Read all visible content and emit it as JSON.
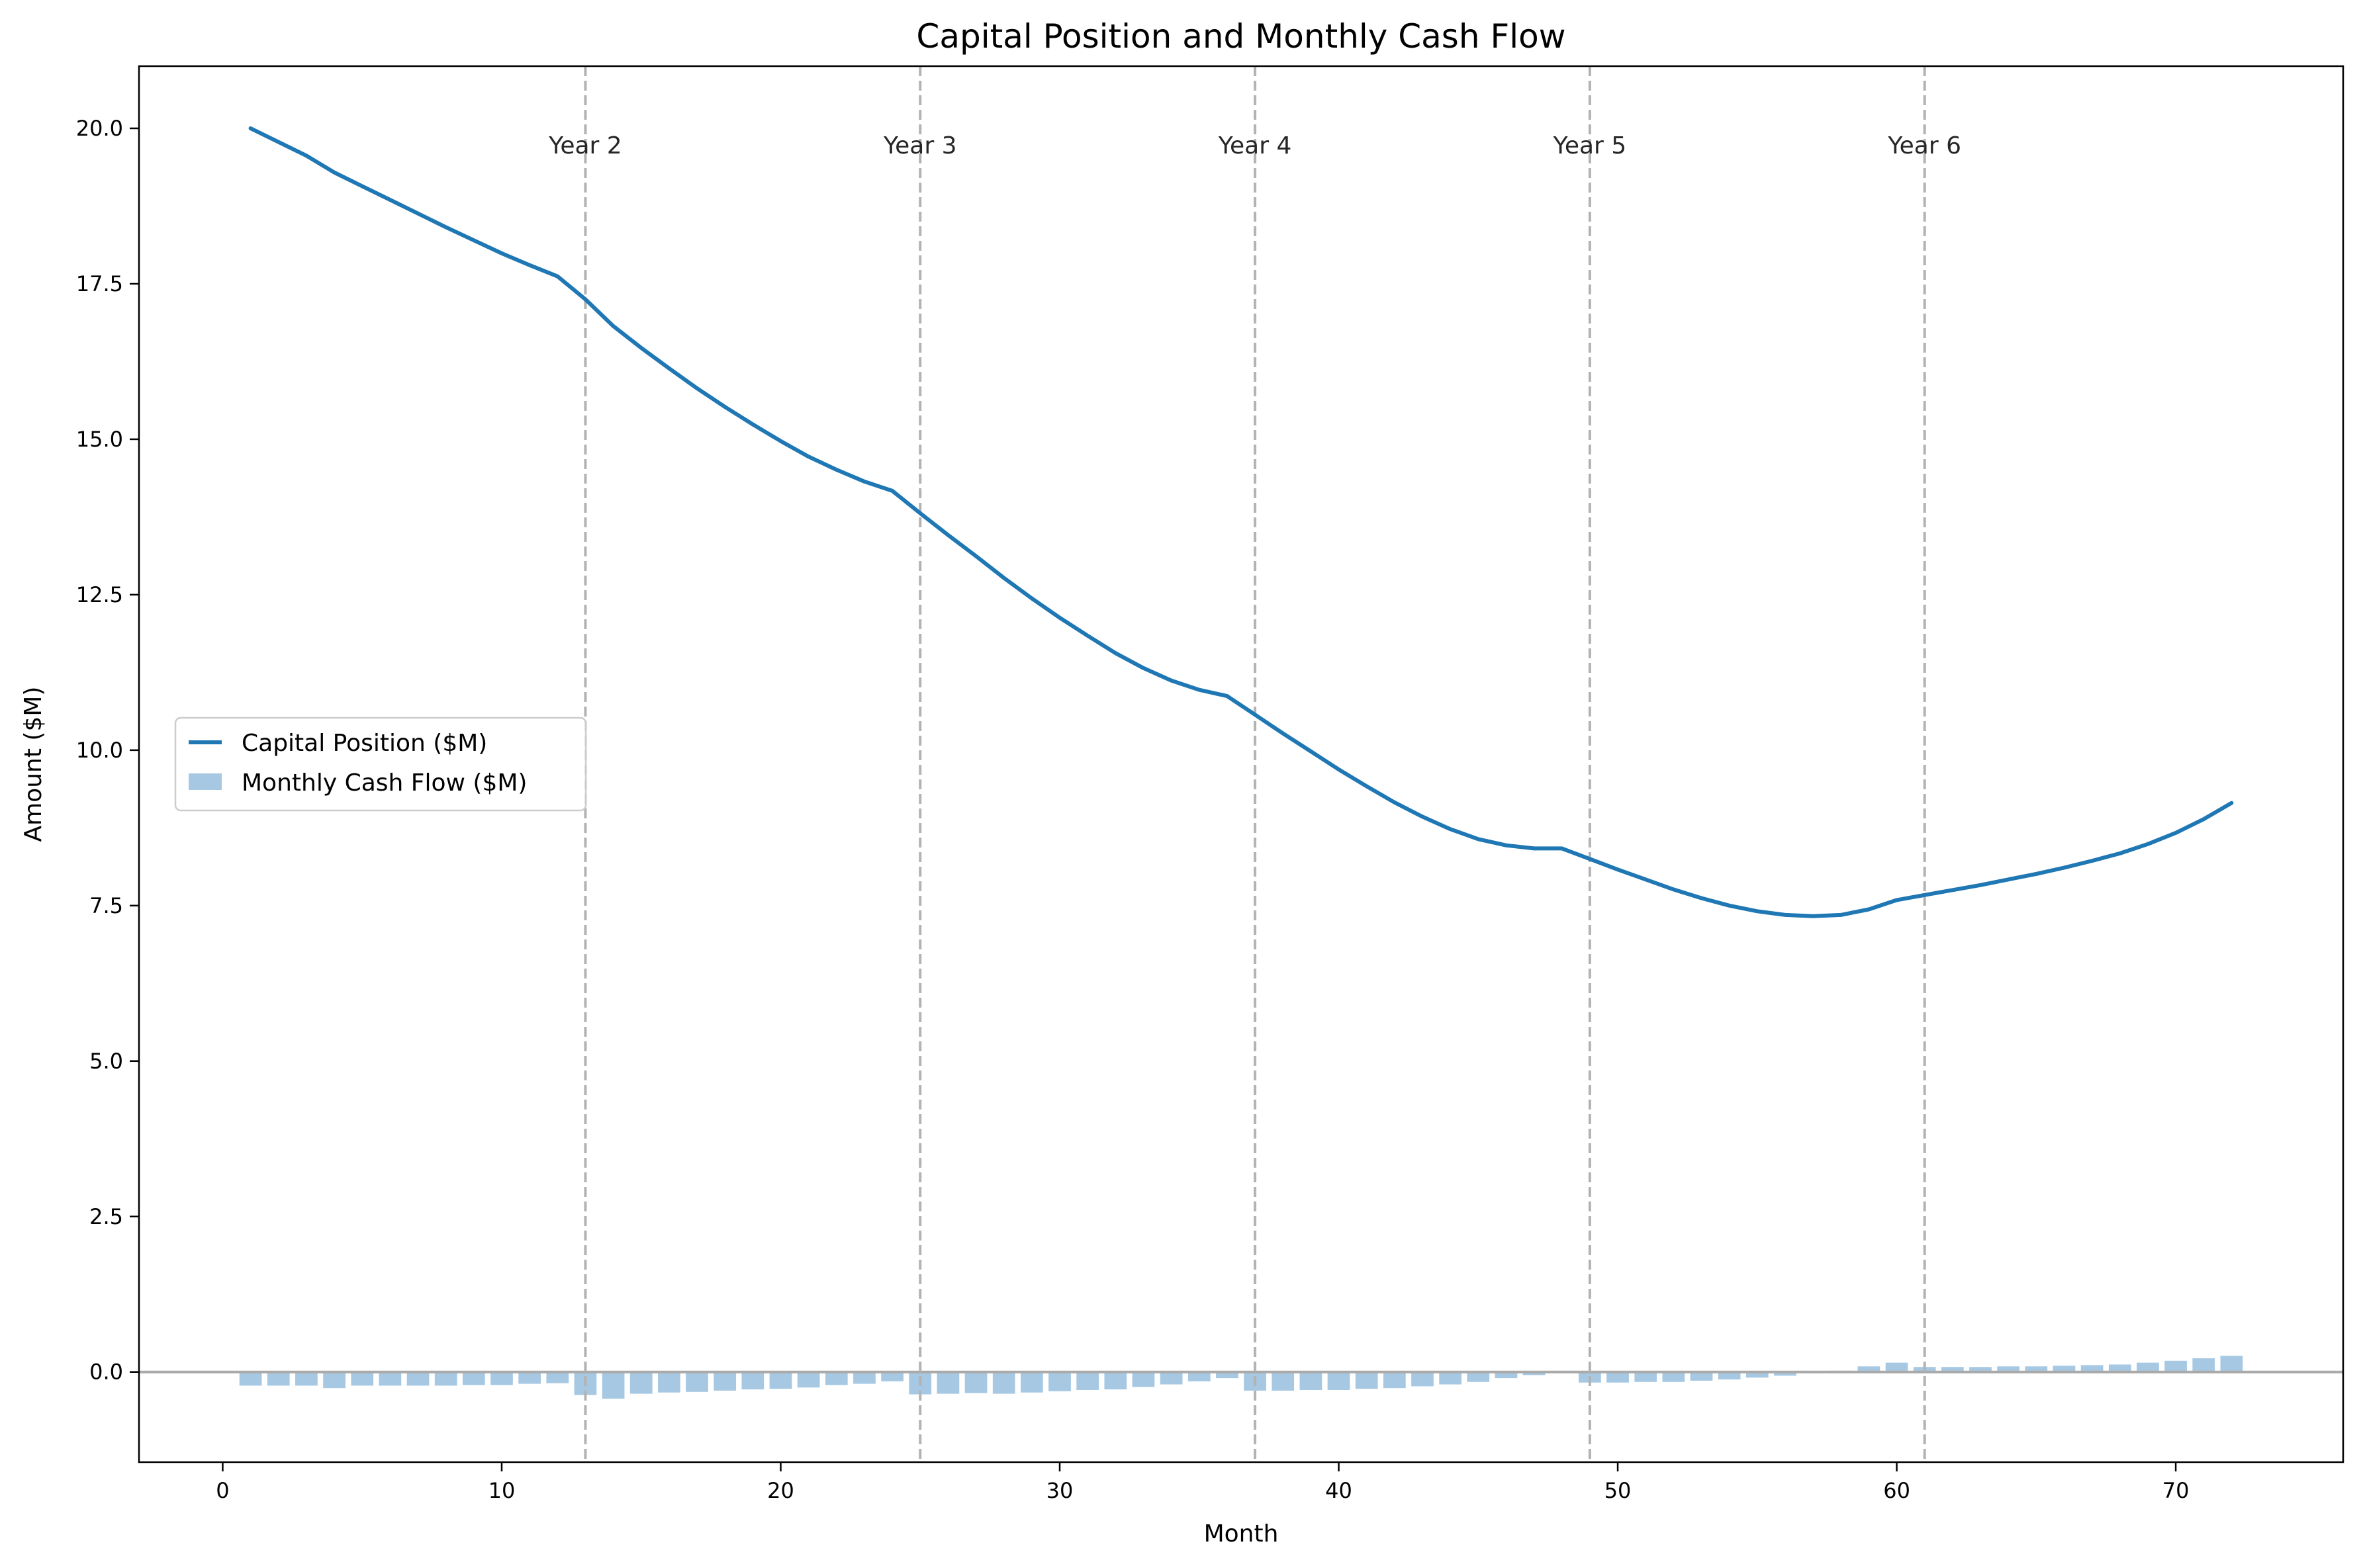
{
  "chart_data": {
    "type": "line",
    "title": "Capital Position and Monthly Cash Flow",
    "xlabel": "Month",
    "ylabel": "Amount ($M)",
    "xlim": [
      -3,
      76
    ],
    "ylim": [
      -1.45,
      21.0
    ],
    "xticks": [
      0,
      10,
      20,
      30,
      40,
      50,
      60,
      70
    ],
    "yticks": [
      0.0,
      2.5,
      5.0,
      7.5,
      10.0,
      12.5,
      15.0,
      17.5,
      20.0
    ],
    "xtick_labels": [
      "0",
      "10",
      "20",
      "30",
      "40",
      "50",
      "60",
      "70"
    ],
    "ytick_labels": [
      "0.0",
      "2.5",
      "5.0",
      "7.5",
      "10.0",
      "12.5",
      "15.0",
      "17.5",
      "20.0"
    ],
    "grid": false,
    "legend": {
      "placement": "center-left",
      "entries": [
        "Capital Position ($M)",
        "Monthly Cash Flow ($M)"
      ]
    },
    "annotations": [
      {
        "x": 13,
        "label": "Year 2"
      },
      {
        "x": 25,
        "label": "Year 3"
      },
      {
        "x": 37,
        "label": "Year 4"
      },
      {
        "x": 49,
        "label": "Year 5"
      },
      {
        "x": 61,
        "label": "Year 6"
      }
    ],
    "x": [
      1,
      2,
      3,
      4,
      5,
      6,
      7,
      8,
      9,
      10,
      11,
      12,
      13,
      14,
      15,
      16,
      17,
      18,
      19,
      20,
      21,
      22,
      23,
      24,
      25,
      26,
      27,
      28,
      29,
      30,
      31,
      32,
      33,
      34,
      35,
      36,
      37,
      38,
      39,
      40,
      41,
      42,
      43,
      44,
      45,
      46,
      47,
      48,
      49,
      50,
      51,
      52,
      53,
      54,
      55,
      56,
      57,
      58,
      59,
      60,
      61,
      62,
      63,
      64,
      65,
      66,
      67,
      68,
      69,
      70,
      71,
      72
    ],
    "series": [
      {
        "name": "Capital Position ($M)",
        "kind": "line",
        "color": "#1f77b4",
        "values": [
          20.0,
          19.78,
          19.56,
          19.29,
          19.07,
          18.85,
          18.63,
          18.41,
          18.2,
          17.99,
          17.8,
          17.62,
          17.25,
          16.82,
          16.47,
          16.14,
          15.82,
          15.52,
          15.24,
          14.97,
          14.72,
          14.51,
          14.32,
          14.17,
          13.81,
          13.46,
          13.12,
          12.77,
          12.44,
          12.13,
          11.84,
          11.56,
          11.32,
          11.12,
          10.97,
          10.87,
          10.57,
          10.27,
          9.98,
          9.69,
          9.42,
          9.16,
          8.93,
          8.73,
          8.57,
          8.47,
          8.42,
          8.42,
          8.25,
          8.08,
          7.92,
          7.76,
          7.62,
          7.5,
          7.41,
          7.35,
          7.33,
          7.35,
          7.44,
          7.59,
          7.67,
          7.75,
          7.83,
          7.92,
          8.01,
          8.11,
          8.22,
          8.34,
          8.49,
          8.67,
          8.89,
          9.15
        ]
      },
      {
        "name": "Monthly Cash Flow ($M)",
        "kind": "bar",
        "color": "#a6c8e3",
        "values": [
          -0.22,
          -0.22,
          -0.22,
          -0.26,
          -0.22,
          -0.22,
          -0.22,
          -0.22,
          -0.21,
          -0.21,
          -0.19,
          -0.18,
          -0.37,
          -0.43,
          -0.35,
          -0.33,
          -0.32,
          -0.3,
          -0.28,
          -0.27,
          -0.25,
          -0.21,
          -0.19,
          -0.15,
          -0.36,
          -0.35,
          -0.34,
          -0.35,
          -0.33,
          -0.31,
          -0.29,
          -0.28,
          -0.24,
          -0.2,
          -0.15,
          -0.1,
          -0.3,
          -0.3,
          -0.29,
          -0.29,
          -0.27,
          -0.26,
          -0.23,
          -0.2,
          -0.16,
          -0.1,
          -0.05,
          0.0,
          -0.17,
          -0.17,
          -0.16,
          -0.16,
          -0.14,
          -0.12,
          -0.09,
          -0.06,
          -0.02,
          0.02,
          0.09,
          0.15,
          0.08,
          0.08,
          0.08,
          0.09,
          0.09,
          0.1,
          0.11,
          0.12,
          0.15,
          0.18,
          0.22,
          0.26
        ]
      }
    ]
  }
}
